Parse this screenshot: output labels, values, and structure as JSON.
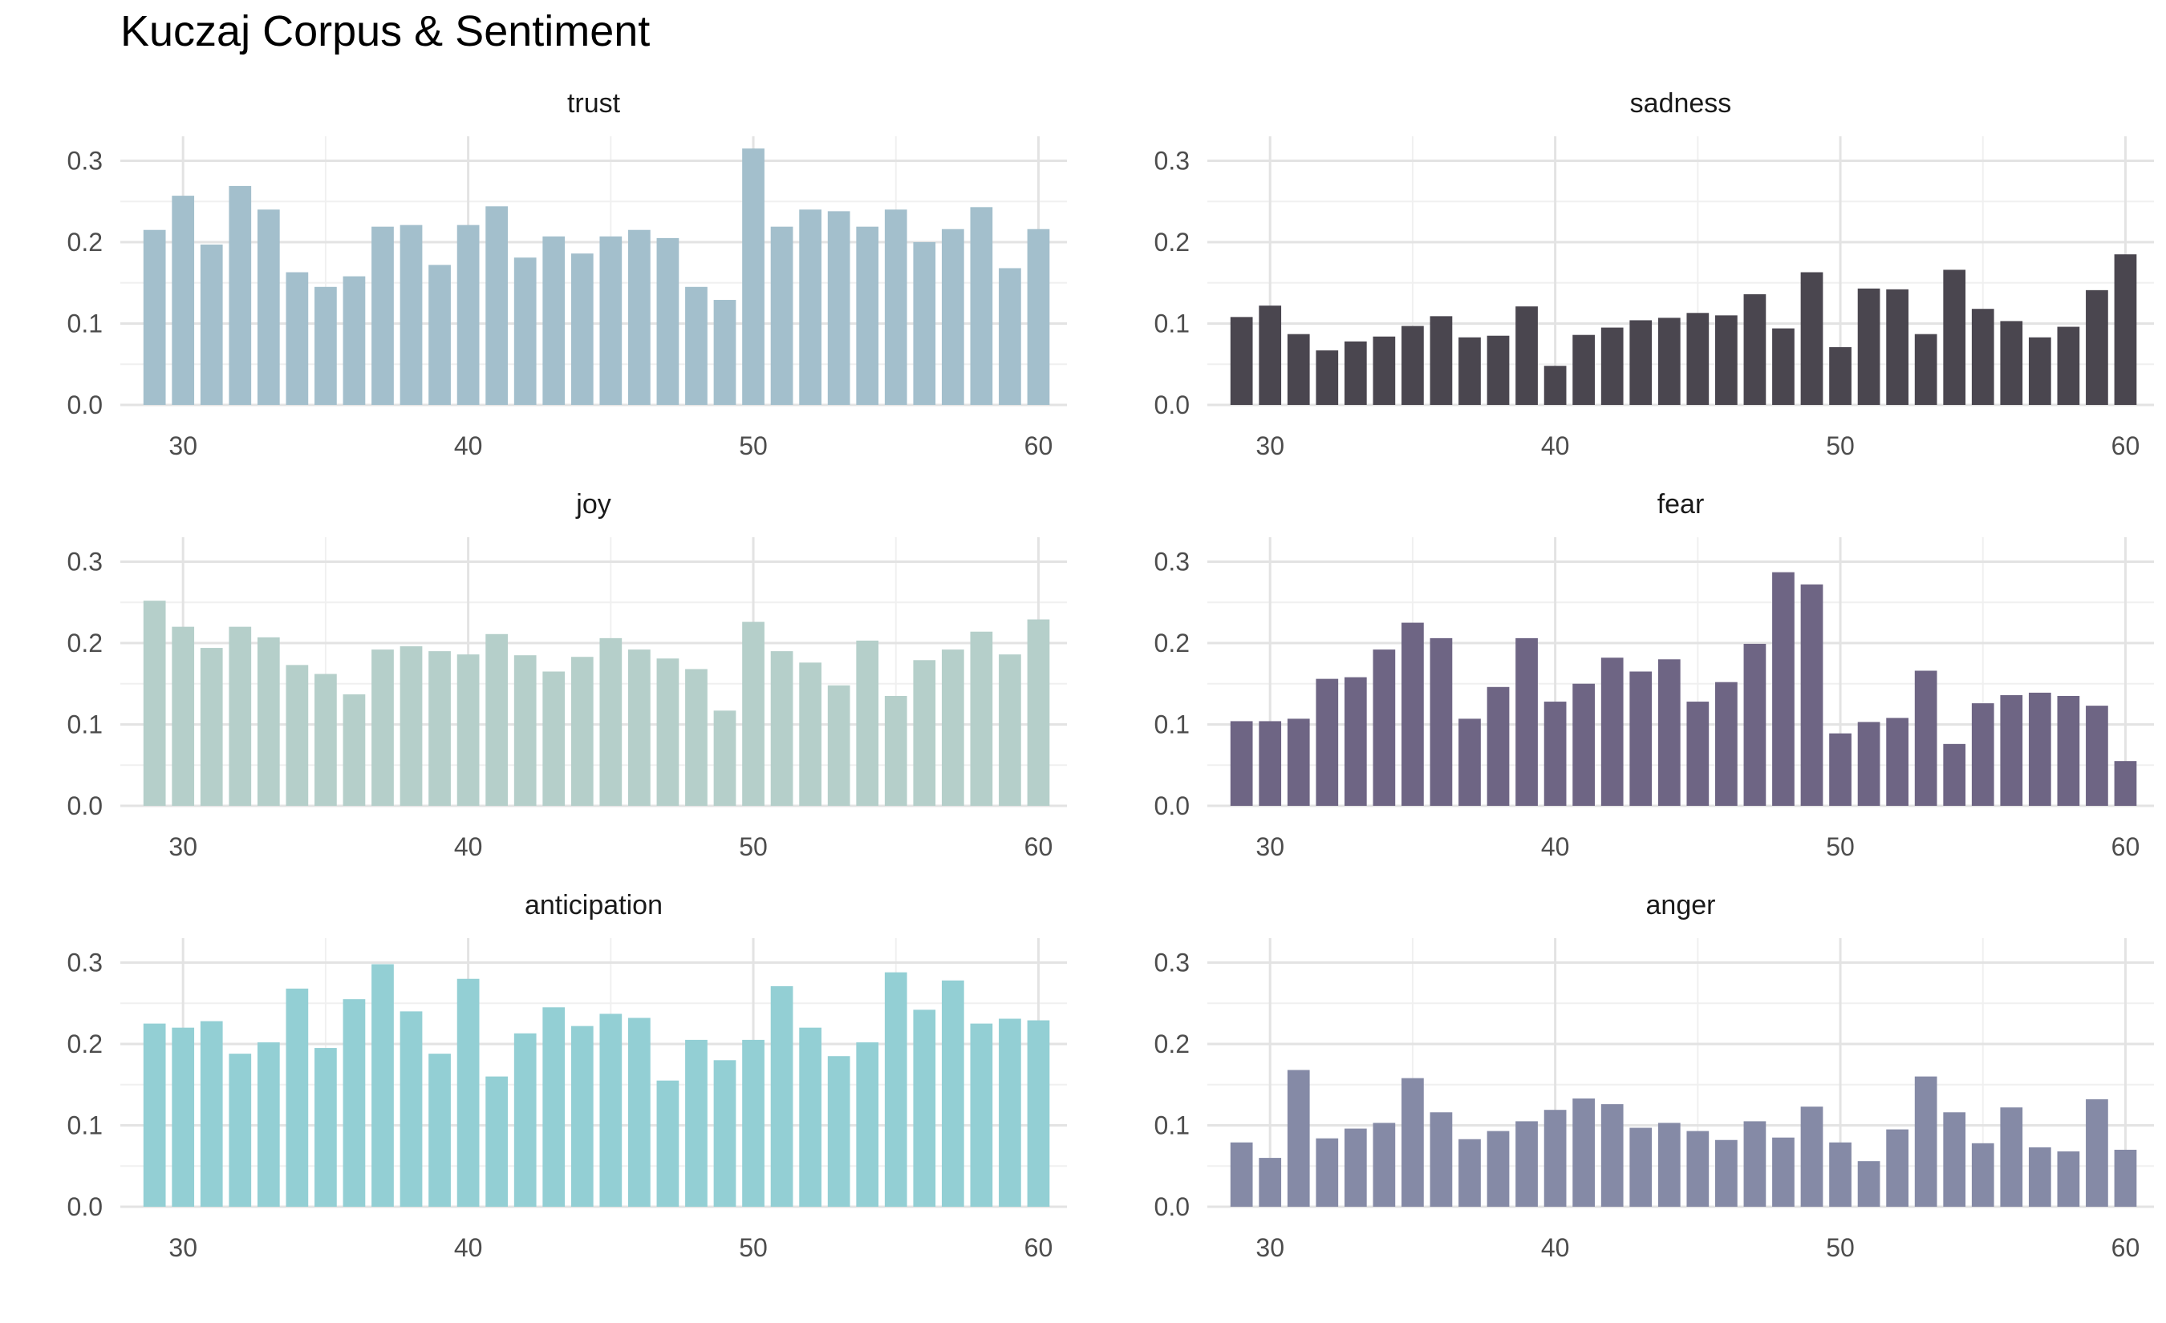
{
  "chart_data": {
    "type": "bar",
    "title": "Kuczaj Corpus & Sentiment",
    "xlabel": "",
    "ylabel": "",
    "x": [
      29,
      30,
      31,
      32,
      33,
      34,
      35,
      36,
      37,
      38,
      39,
      40,
      41,
      42,
      43,
      44,
      45,
      46,
      47,
      48,
      49,
      50,
      51,
      52,
      53,
      54,
      55,
      56,
      57,
      58,
      59,
      60
    ],
    "xlim": [
      27.8,
      61.0
    ],
    "ylim": [
      0,
      0.33
    ],
    "x_ticks": [
      "30",
      "40",
      "50",
      "60"
    ],
    "y_ticks": [
      "0.0",
      "0.1",
      "0.2",
      "0.3"
    ],
    "grid": true,
    "legend": "none",
    "facets": [
      {
        "name": "trust",
        "color": "#a3bfcc",
        "values": [
          0.215,
          0.257,
          0.197,
          0.269,
          0.24,
          0.163,
          0.145,
          0.158,
          0.219,
          0.221,
          0.172,
          0.221,
          0.244,
          0.181,
          0.207,
          0.186,
          0.207,
          0.215,
          0.205,
          0.145,
          0.129,
          0.315,
          0.219,
          0.24,
          0.238,
          0.219,
          0.24,
          0.2,
          0.216,
          0.243,
          0.168,
          0.216
        ]
      },
      {
        "name": "sadness",
        "color": "#4a464f",
        "values": [
          0.108,
          0.122,
          0.087,
          0.067,
          0.078,
          0.084,
          0.097,
          0.109,
          0.083,
          0.085,
          0.121,
          0.048,
          0.086,
          0.095,
          0.104,
          0.107,
          0.113,
          0.11,
          0.136,
          0.094,
          0.163,
          0.071,
          0.143,
          0.142,
          0.087,
          0.166,
          0.118,
          0.103,
          0.083,
          0.096,
          0.141,
          0.185
        ]
      },
      {
        "name": "joy",
        "color": "#b5cfca",
        "values": [
          0.252,
          0.22,
          0.194,
          0.22,
          0.207,
          0.173,
          0.162,
          0.137,
          0.192,
          0.196,
          0.19,
          0.186,
          0.211,
          0.185,
          0.165,
          0.183,
          0.206,
          0.192,
          0.181,
          0.168,
          0.117,
          0.226,
          0.19,
          0.176,
          0.148,
          0.203,
          0.135,
          0.179,
          0.192,
          0.214,
          0.186,
          0.229
        ]
      },
      {
        "name": "fear",
        "color": "#6e6584",
        "values": [
          0.104,
          0.104,
          0.107,
          0.156,
          0.158,
          0.192,
          0.225,
          0.206,
          0.107,
          0.146,
          0.206,
          0.128,
          0.15,
          0.182,
          0.165,
          0.18,
          0.128,
          0.152,
          0.199,
          0.287,
          0.272,
          0.089,
          0.103,
          0.108,
          0.166,
          0.076,
          0.126,
          0.136,
          0.139,
          0.135,
          0.123,
          0.055
        ]
      },
      {
        "name": "anticipation",
        "color": "#93cfd4",
        "values": [
          0.225,
          0.22,
          0.228,
          0.188,
          0.202,
          0.268,
          0.195,
          0.255,
          0.298,
          0.24,
          0.188,
          0.28,
          0.16,
          0.213,
          0.245,
          0.222,
          0.237,
          0.232,
          0.155,
          0.205,
          0.18,
          0.205,
          0.271,
          0.22,
          0.185,
          0.202,
          0.288,
          0.242,
          0.278,
          0.225,
          0.231,
          0.229
        ]
      },
      {
        "name": "anger",
        "color": "#858aa6",
        "values": [
          0.079,
          0.06,
          0.168,
          0.084,
          0.096,
          0.103,
          0.158,
          0.116,
          0.083,
          0.093,
          0.105,
          0.119,
          0.133,
          0.126,
          0.097,
          0.103,
          0.093,
          0.082,
          0.105,
          0.085,
          0.123,
          0.079,
          0.056,
          0.095,
          0.16,
          0.116,
          0.078,
          0.122,
          0.073,
          0.068,
          0.132,
          0.07
        ]
      }
    ]
  }
}
